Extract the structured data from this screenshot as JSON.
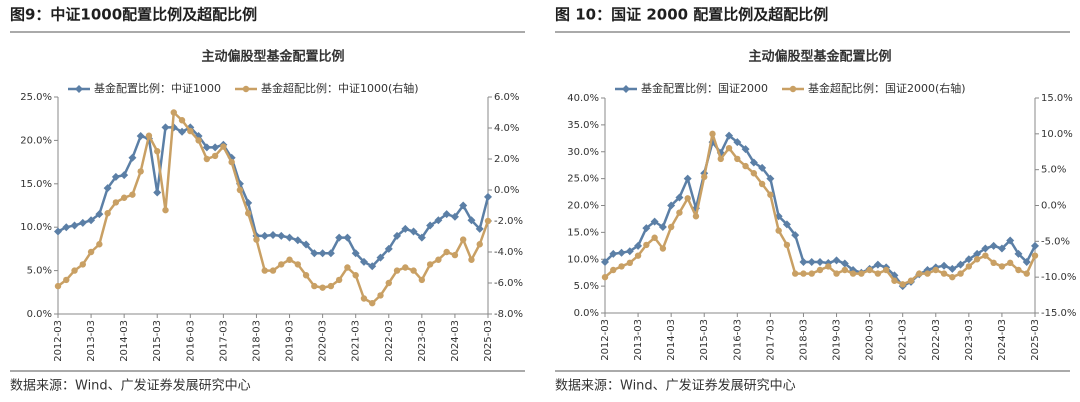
{
  "chart_data": [
    {
      "type": "line",
      "figure_title": "图9：中证1000配置比例及超配比例",
      "title": "主动偏股型基金配置比例",
      "source": "数据来源：Wind、广发证券发展研究中心",
      "categories": [
        "2012-03",
        null,
        null,
        null,
        "2013-03",
        null,
        null,
        null,
        "2014-03",
        null,
        null,
        null,
        "2015-03",
        null,
        null,
        null,
        "2016-03",
        null,
        null,
        null,
        "2017-03",
        null,
        null,
        null,
        "2018-03",
        null,
        null,
        null,
        "2019-03",
        null,
        null,
        null,
        "2020-03",
        null,
        null,
        null,
        "2021-03",
        null,
        null,
        null,
        "2022-03",
        null,
        null,
        null,
        "2023-03",
        null,
        null,
        null,
        "2024-03",
        null,
        null,
        null,
        "2025-03"
      ],
      "series": [
        {
          "name": "基金配置比例：中证1000",
          "color": "#5b7fa6",
          "marker": "diamond",
          "values": [
            9.5,
            10,
            10.2,
            10.5,
            10.8,
            11.5,
            14.5,
            15.8,
            16,
            18,
            20.5,
            20.2,
            14,
            21.5,
            21.5,
            21,
            21.5,
            20.5,
            19.2,
            19.2,
            19.5,
            18,
            15,
            12.8,
            9,
            9,
            9.1,
            9,
            8.8,
            8.5,
            8,
            7,
            7,
            7,
            8.8,
            8.8,
            7,
            6,
            5.5,
            6.5,
            7.5,
            9,
            9.8,
            9.5,
            8.8,
            10.2,
            10.8,
            11.5,
            11.2,
            12.5,
            10.8,
            9.8,
            13.5
          ]
        },
        {
          "name": "基金超配比例：中证1000(右轴)",
          "color": "#c9a064",
          "marker": "circle",
          "axis": "y2",
          "values": [
            -6.2,
            -5.8,
            -5.2,
            -4.8,
            -4,
            -3.5,
            -1.5,
            -0.8,
            -0.5,
            -0.3,
            1.2,
            3.5,
            2.5,
            -1.3,
            5,
            4.5,
            3.8,
            3.2,
            2,
            2.2,
            2.8,
            1.8,
            0,
            -1.5,
            -3.2,
            -5.2,
            -5.2,
            -4.8,
            -4.5,
            -4.8,
            -5.5,
            -6.2,
            -6.3,
            -6.2,
            -5.8,
            -5,
            -5.5,
            -7,
            -7.3,
            -6.8,
            -6,
            -5.2,
            -5,
            -5.2,
            -5.8,
            -4.8,
            -4.5,
            -4,
            -4.2,
            -3.2,
            -4.5,
            -3.5,
            -2
          ]
        }
      ],
      "ylim": [
        0,
        25
      ],
      "yticks": [
        {
          "value": 0,
          "label": "0.0%"
        },
        {
          "value": 5,
          "label": "5.0%"
        },
        {
          "value": 10,
          "label": "10.0%"
        },
        {
          "value": 15,
          "label": "15.0%"
        },
        {
          "value": 20,
          "label": "20.0%"
        },
        {
          "value": 25,
          "label": "25.0%"
        }
      ],
      "y2lim": [
        -8,
        6
      ],
      "y2ticks": [
        {
          "value": -8,
          "label": "-8.0%"
        },
        {
          "value": -6,
          "label": "-6.0%"
        },
        {
          "value": -4,
          "label": "-4.0%"
        },
        {
          "value": -2,
          "label": "-2.0%"
        },
        {
          "value": 0,
          "label": "0.0%"
        },
        {
          "value": 2,
          "label": "2.0%"
        },
        {
          "value": 4,
          "label": "4.0%"
        },
        {
          "value": 6,
          "label": "6.0%"
        }
      ]
    },
    {
      "type": "line",
      "figure_title": "图 10：国证 2000 配置比例及超配比例",
      "title": "主动偏股型基金配置比例",
      "source": "数据来源：Wind、广发证券发展研究中心",
      "categories": [
        "2012-03",
        null,
        null,
        null,
        "2013-03",
        null,
        null,
        null,
        "2014-03",
        null,
        null,
        null,
        "2015-03",
        null,
        null,
        null,
        "2016-03",
        null,
        null,
        null,
        "2017-03",
        null,
        null,
        null,
        "2018-03",
        null,
        null,
        null,
        "2019-03",
        null,
        null,
        null,
        "2020-03",
        null,
        null,
        null,
        "2021-03",
        null,
        null,
        null,
        "2022-03",
        null,
        null,
        null,
        "2023-03",
        null,
        null,
        null,
        "2024-03",
        null,
        null,
        null,
        "2025-03"
      ],
      "series": [
        {
          "name": "基金配置比例：国证2000",
          "color": "#5b7fa6",
          "marker": "diamond",
          "values": [
            9.5,
            11,
            11.2,
            11.5,
            12.5,
            15.8,
            17,
            16,
            20,
            21.5,
            25,
            19.5,
            26,
            31.8,
            29.8,
            33,
            31.8,
            30.5,
            28,
            27,
            25,
            18,
            16.5,
            14.5,
            9.5,
            9.5,
            9.5,
            9.3,
            9.8,
            9.2,
            8,
            7.5,
            8.2,
            9,
            8.5,
            7,
            5,
            5.8,
            7.2,
            8,
            8.5,
            8.8,
            8.2,
            9,
            10,
            11,
            12,
            12.5,
            12,
            13.5,
            11,
            9.5,
            12.5
          ]
        },
        {
          "name": "基金超配比例：国证2000(右轴)",
          "color": "#c9a064",
          "marker": "circle",
          "axis": "y2",
          "values": [
            -10,
            -9,
            -8.5,
            -8,
            -7,
            -5.5,
            -4.5,
            -6,
            -3,
            -1,
            1,
            -1.5,
            4,
            10,
            6.5,
            8,
            6.5,
            5.5,
            4.5,
            3,
            1.5,
            -3.5,
            -5.5,
            -9.5,
            -9.5,
            -9.5,
            -9,
            -8.5,
            -9.5,
            -9,
            -9.5,
            -9.5,
            -9,
            -9.5,
            -9,
            -10.5,
            -11,
            -10.5,
            -9.5,
            -9.5,
            -9,
            -9.5,
            -10,
            -9.5,
            -8.5,
            -7.5,
            -7,
            -8,
            -8.5,
            -8,
            -9,
            -9.5,
            -7
          ]
        }
      ],
      "ylim": [
        0,
        40
      ],
      "yticks": [
        {
          "value": 0,
          "label": "0.0%"
        },
        {
          "value": 5,
          "label": "5.0%"
        },
        {
          "value": 10,
          "label": "10.0%"
        },
        {
          "value": 15,
          "label": "15.0%"
        },
        {
          "value": 20,
          "label": "20.0%"
        },
        {
          "value": 25,
          "label": "25.0%"
        },
        {
          "value": 30,
          "label": "30.0%"
        },
        {
          "value": 35,
          "label": "35.0%"
        },
        {
          "value": 40,
          "label": "40.0%"
        }
      ],
      "y2lim": [
        -15,
        15
      ],
      "y2ticks": [
        {
          "value": -15,
          "label": "-15.0%"
        },
        {
          "value": -10,
          "label": "-10.0%"
        },
        {
          "value": -5,
          "label": "-5.0%"
        },
        {
          "value": 0,
          "label": "0.0%"
        },
        {
          "value": 5,
          "label": "5.0%"
        },
        {
          "value": 10,
          "label": "10.0%"
        },
        {
          "value": 15,
          "label": "15.0%"
        }
      ]
    }
  ]
}
